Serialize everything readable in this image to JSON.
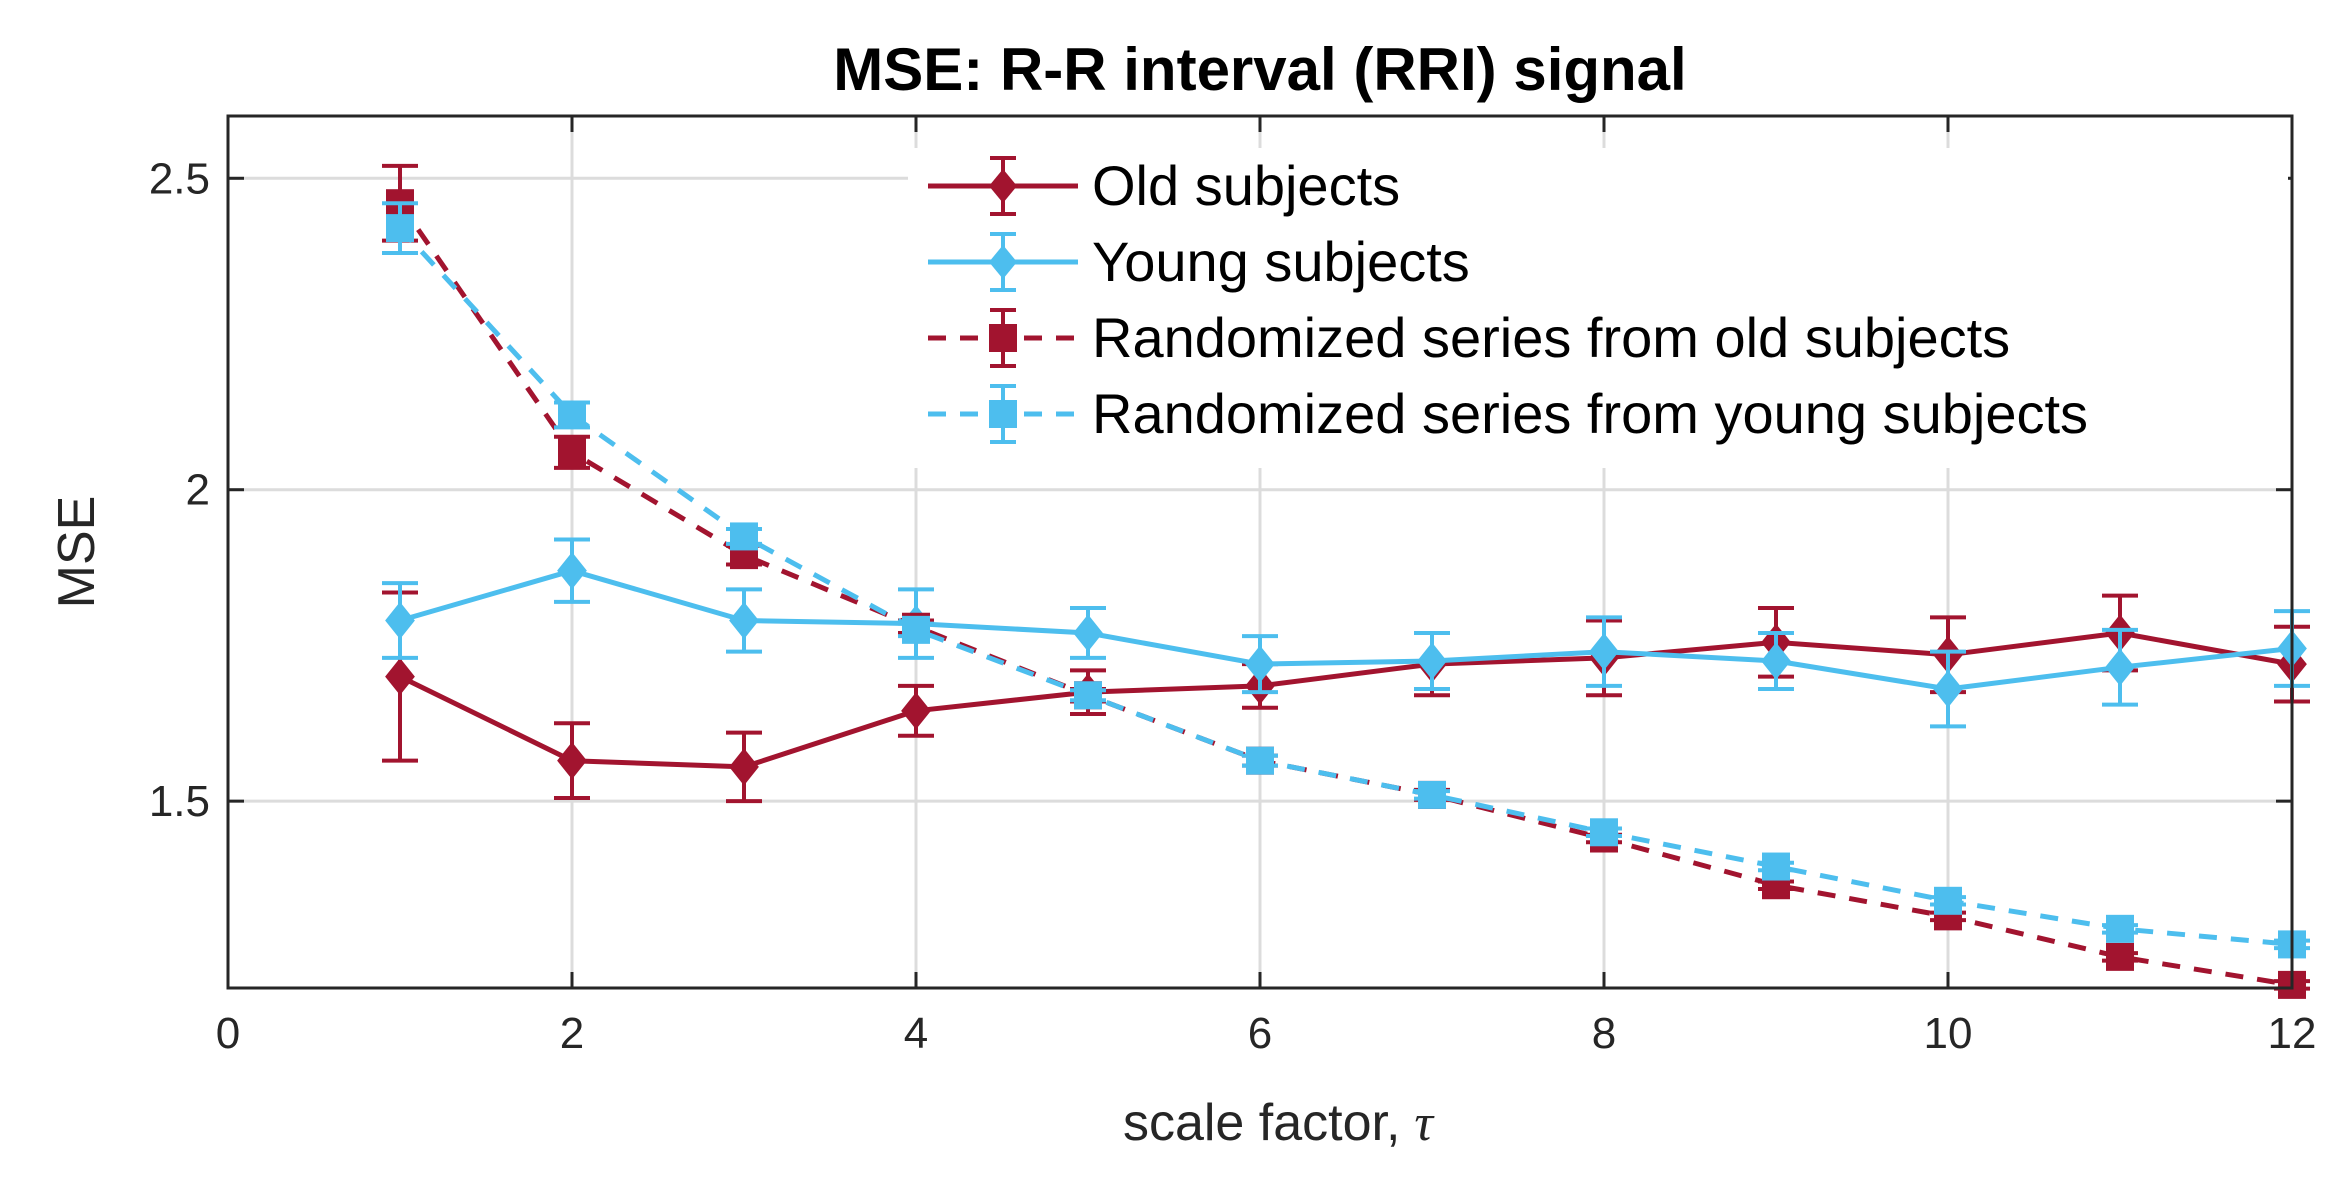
{
  "chart_data": {
    "type": "line",
    "title": "MSE: R-R interval (RRI) signal",
    "xlabel": "scale factor,",
    "xlabel_symbol": "τ",
    "ylabel": "MSE",
    "xlim": [
      0,
      12
    ],
    "ylim": [
      1.2,
      2.6
    ],
    "xticks": [
      0,
      2,
      4,
      6,
      8,
      10,
      12
    ],
    "xtick_labels": [
      "0",
      "2",
      "4",
      "6",
      "8",
      "10",
      "12"
    ],
    "yticks": [
      1.5,
      2.0,
      2.5
    ],
    "ytick_labels": [
      "1.5",
      "2",
      "2.5"
    ],
    "grid": true,
    "legend_position": "top-right",
    "x": [
      1,
      2,
      3,
      4,
      5,
      6,
      7,
      8,
      9,
      10,
      11,
      12
    ],
    "series": [
      {
        "name": "Old subjects",
        "color": "#A2142F",
        "line": "solid",
        "marker": "diamond",
        "values": [
          1.7,
          1.565,
          1.555,
          1.645,
          1.675,
          1.685,
          1.72,
          1.73,
          1.755,
          1.735,
          1.77,
          1.72
        ],
        "errors": [
          0.135,
          0.06,
          0.055,
          0.04,
          0.035,
          0.035,
          0.05,
          0.06,
          0.055,
          0.06,
          0.06,
          0.06
        ]
      },
      {
        "name": "Young subjects",
        "color": "#4DBEEE",
        "line": "solid",
        "marker": "diamond",
        "values": [
          1.79,
          1.87,
          1.79,
          1.785,
          1.77,
          1.72,
          1.725,
          1.74,
          1.725,
          1.68,
          1.715,
          1.745
        ],
        "errors": [
          0.06,
          0.05,
          0.05,
          0.055,
          0.04,
          0.045,
          0.045,
          0.055,
          0.045,
          0.06,
          0.06,
          0.06
        ]
      },
      {
        "name": "Randomized series from old subjects",
        "color": "#A2142F",
        "line": "dashed",
        "marker": "square",
        "values": [
          2.46,
          2.06,
          1.895,
          1.78,
          1.67,
          1.565,
          1.51,
          1.44,
          1.365,
          1.315,
          1.25,
          1.205
        ],
        "errors": [
          0.06,
          0.025,
          0.015,
          0.01,
          0.01,
          0.008,
          0.008,
          0.006,
          0.006,
          0.006,
          0.006,
          0.006
        ]
      },
      {
        "name": "Randomized series from young subjects",
        "color": "#4DBEEE",
        "line": "dashed",
        "marker": "square",
        "values": [
          2.42,
          2.12,
          1.925,
          1.775,
          1.67,
          1.565,
          1.51,
          1.45,
          1.395,
          1.34,
          1.295,
          1.27
        ],
        "errors": [
          0.04,
          0.02,
          0.012,
          0.01,
          0.008,
          0.008,
          0.006,
          0.006,
          0.006,
          0.006,
          0.006,
          0.006
        ]
      }
    ]
  }
}
